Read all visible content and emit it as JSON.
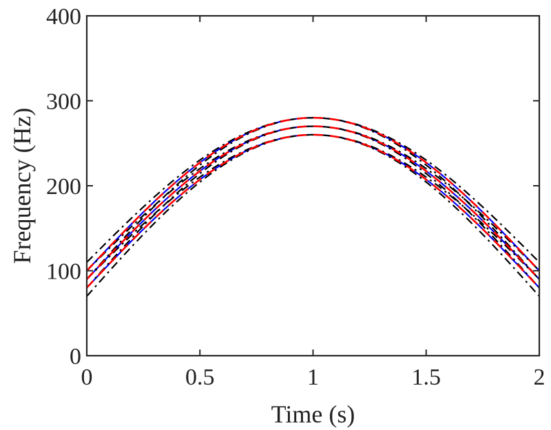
{
  "chart_data": {
    "type": "line",
    "xlabel": "Time (s)",
    "ylabel": "Frequency (Hz)",
    "xlim": [
      0,
      2
    ],
    "ylim": [
      0,
      400
    ],
    "xticks": [
      0,
      0.5,
      1,
      1.5,
      2
    ],
    "xtick_labels": [
      "0",
      "0.5",
      "1",
      "1.5",
      "2"
    ],
    "yticks": [
      0,
      100,
      200,
      300,
      400
    ],
    "ytick_labels": [
      "0",
      "100",
      "200",
      "300",
      "400"
    ],
    "grid": false,
    "legend": false,
    "box": true,
    "series": [
      {
        "style": "solid",
        "color": "#0000ff",
        "function": "offset + amp*sin(pi*t/2)",
        "offset": 100,
        "amplitude": 180,
        "points": [
          [
            0,
            100
          ],
          [
            0.25,
            168.9
          ],
          [
            0.5,
            227.3
          ],
          [
            0.75,
            266.3
          ],
          [
            1,
            280
          ],
          [
            1.25,
            266.3
          ],
          [
            1.5,
            227.3
          ],
          [
            1.75,
            168.9
          ],
          [
            2,
            100
          ]
        ]
      },
      {
        "style": "solid",
        "color": "#0000ff",
        "function": "offset + amp*sin(pi*t/2)",
        "offset": 90,
        "amplitude": 180,
        "points": [
          [
            0,
            90
          ],
          [
            0.25,
            158.9
          ],
          [
            0.5,
            217.3
          ],
          [
            0.75,
            256.3
          ],
          [
            1,
            270
          ],
          [
            1.25,
            256.3
          ],
          [
            1.5,
            217.3
          ],
          [
            1.75,
            158.9
          ],
          [
            2,
            90
          ]
        ]
      },
      {
        "style": "solid",
        "color": "#0000ff",
        "function": "offset + amp*sin(pi*t/2)",
        "offset": 80,
        "amplitude": 180,
        "points": [
          [
            0,
            80
          ],
          [
            0.25,
            148.9
          ],
          [
            0.5,
            207.3
          ],
          [
            0.75,
            246.3
          ],
          [
            1,
            260
          ],
          [
            1.25,
            246.3
          ],
          [
            1.5,
            207.3
          ],
          [
            1.75,
            148.9
          ],
          [
            2,
            80
          ]
        ]
      },
      {
        "style": "dash-dot",
        "color": "#000000",
        "function": "offset + amp*sin(pi*t/2)",
        "offset": 110,
        "amplitude": 170,
        "points": [
          [
            0,
            110
          ],
          [
            0.5,
            230.2
          ],
          [
            1,
            280
          ],
          [
            1.5,
            230.2
          ],
          [
            2,
            110
          ]
        ]
      },
      {
        "style": "dash-dot",
        "color": "#000000",
        "function": "offset + amp*sin(pi*t/2)",
        "offset": 100,
        "amplitude": 170,
        "points": [
          [
            0,
            100
          ],
          [
            0.5,
            220.2
          ],
          [
            1,
            270
          ],
          [
            1.5,
            220.2
          ],
          [
            2,
            100
          ]
        ]
      },
      {
        "style": "dash-dot",
        "color": "#000000",
        "function": "offset + amp*sin(pi*t/2)",
        "offset": 90,
        "amplitude": 170,
        "points": [
          [
            0,
            90
          ],
          [
            0.5,
            210.2
          ],
          [
            1,
            260
          ],
          [
            1.5,
            210.2
          ],
          [
            2,
            90
          ]
        ]
      },
      {
        "style": "dash-dot",
        "color": "#000000",
        "function": "offset + amp*sin(pi*t/2)",
        "offset": 90,
        "amplitude": 190,
        "points": [
          [
            0,
            90
          ],
          [
            0.5,
            224.4
          ],
          [
            1,
            280
          ],
          [
            1.5,
            224.4
          ],
          [
            2,
            90
          ]
        ]
      },
      {
        "style": "dash-dot",
        "color": "#000000",
        "function": "offset + amp*sin(pi*t/2)",
        "offset": 80,
        "amplitude": 190,
        "points": [
          [
            0,
            80
          ],
          [
            0.5,
            214.4
          ],
          [
            1,
            270
          ],
          [
            1.5,
            214.4
          ],
          [
            2,
            80
          ]
        ]
      },
      {
        "style": "dash-dot",
        "color": "#000000",
        "function": "offset + amp*sin(pi*t/2)",
        "offset": 70,
        "amplitude": 190,
        "points": [
          [
            0,
            70
          ],
          [
            0.5,
            204.4
          ],
          [
            1,
            260
          ],
          [
            1.5,
            204.4
          ],
          [
            2,
            70
          ]
        ]
      },
      {
        "style": "dashed",
        "color": "#ff0000",
        "function": "offset + amp*sin(pi*t/2)",
        "offset": 100,
        "amplitude": 180,
        "points": [
          [
            0,
            100
          ],
          [
            0.5,
            227.3
          ],
          [
            1,
            280
          ],
          [
            1.5,
            227.3
          ],
          [
            2,
            100
          ]
        ]
      },
      {
        "style": "dashed",
        "color": "#ff0000",
        "function": "offset + amp*sin(pi*t/2)",
        "offset": 90,
        "amplitude": 180,
        "points": [
          [
            0,
            90
          ],
          [
            0.5,
            217.3
          ],
          [
            1,
            270
          ],
          [
            1.5,
            217.3
          ],
          [
            2,
            90
          ]
        ]
      },
      {
        "style": "dashed",
        "color": "#ff0000",
        "function": "offset + amp*sin(pi*t/2)",
        "offset": 80,
        "amplitude": 180,
        "points": [
          [
            0,
            80
          ],
          [
            0.5,
            207.3
          ],
          [
            1,
            260
          ],
          [
            1.5,
            207.3
          ],
          [
            2,
            80
          ]
        ]
      }
    ]
  }
}
